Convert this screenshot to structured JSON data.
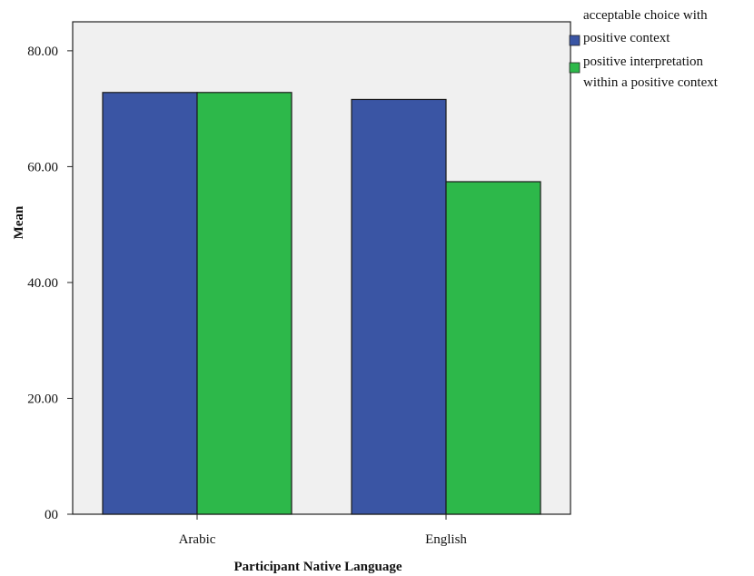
{
  "chart_data": {
    "type": "bar",
    "categories": [
      "Arabic",
      "English"
    ],
    "series": [
      {
        "name": "acceptable choice with positive context",
        "values": [
          72.8,
          71.6
        ],
        "color": "#3a55a4"
      },
      {
        "name": "positive interpretation within a positive context",
        "values": [
          72.8,
          57.4
        ],
        "color": "#2db84a"
      }
    ],
    "legend": {
      "position": "top-right",
      "entries": [
        [
          "acceptable choice with",
          "positive context"
        ],
        [
          "positive interpretation",
          "within a positive context"
        ]
      ]
    },
    "xlabel": "Participant Native Language",
    "ylabel": "Mean",
    "ylim": [
      0,
      85
    ],
    "yticks": [
      0,
      20,
      40,
      60,
      80
    ],
    "ytick_labels": [
      "00",
      "20.00",
      "40.00",
      "60.00",
      "80.00"
    ],
    "plot_background": "#f0f0f0",
    "grid": false
  }
}
